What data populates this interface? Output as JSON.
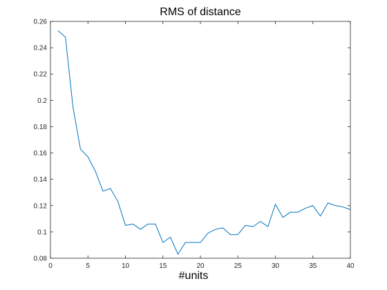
{
  "chart_data": {
    "type": "line",
    "title": "RMS of distance",
    "xlabel": "#units",
    "ylabel": "",
    "xlim": [
      0,
      40
    ],
    "ylim": [
      0.08,
      0.26
    ],
    "grid": false,
    "x_ticks": [
      0,
      5,
      10,
      15,
      20,
      25,
      30,
      35,
      40
    ],
    "y_ticks": [
      0.08,
      0.1,
      0.12,
      0.14,
      0.16,
      0.18,
      0.2,
      0.22,
      0.24,
      0.26
    ],
    "x_tick_labels": [
      "0",
      "5",
      "10",
      "15",
      "20",
      "25",
      "30",
      "35",
      "40"
    ],
    "y_tick_labels": [
      "0.08",
      "0.1",
      "0.12",
      "0.14",
      "0.16",
      "0.18",
      "0.2",
      "0.22",
      "0.24",
      "0.26"
    ],
    "series": [
      {
        "color": "#0072bd",
        "x": [
          1,
          2,
          3,
          4,
          5,
          6,
          7,
          8,
          9,
          10,
          11,
          12,
          13,
          14,
          15,
          16,
          17,
          18,
          19,
          20,
          21,
          22,
          23,
          24,
          25,
          26,
          27,
          28,
          29,
          30,
          31,
          32,
          33,
          34,
          35,
          36,
          37,
          38,
          39,
          40
        ],
        "values": [
          0.253,
          0.248,
          0.195,
          0.163,
          0.157,
          0.146,
          0.131,
          0.133,
          0.123,
          0.105,
          0.106,
          0.102,
          0.106,
          0.106,
          0.092,
          0.096,
          0.083,
          0.092,
          0.092,
          0.092,
          0.099,
          0.102,
          0.103,
          0.098,
          0.098,
          0.105,
          0.104,
          0.108,
          0.104,
          0.121,
          0.111,
          0.115,
          0.115,
          0.118,
          0.12,
          0.112,
          0.122,
          0.12,
          0.119,
          0.117
        ]
      }
    ]
  }
}
